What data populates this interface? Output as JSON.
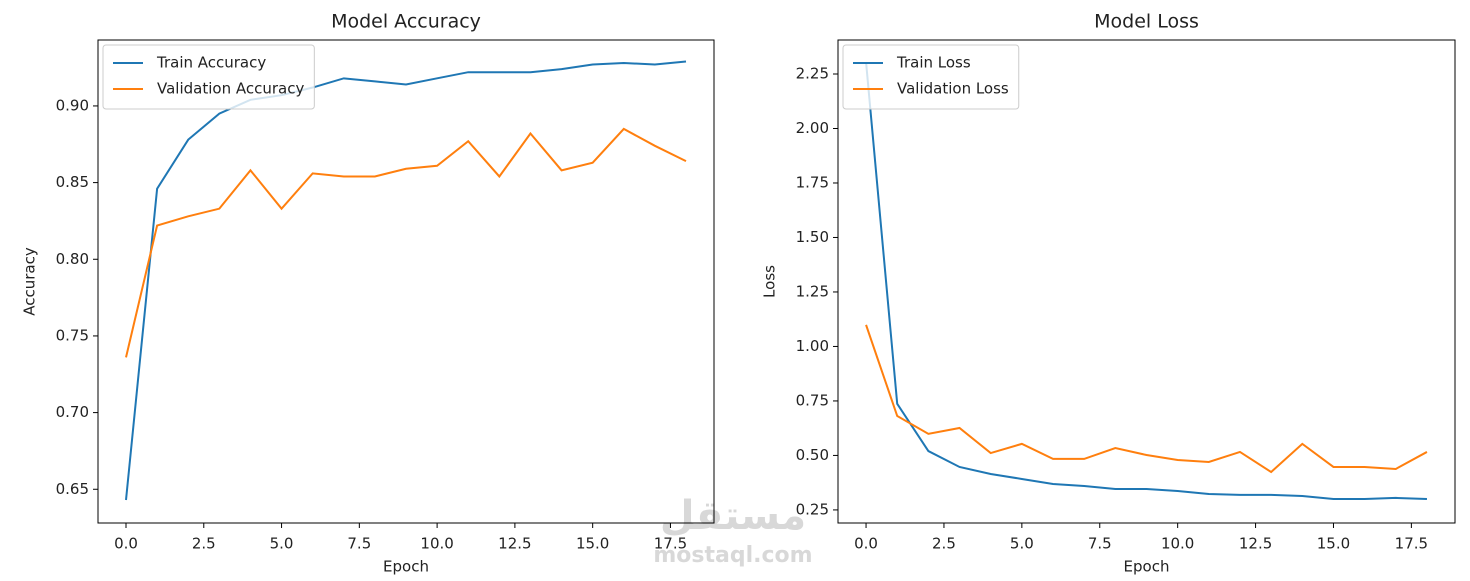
{
  "chart_data": [
    {
      "type": "line",
      "title": "Model Accuracy",
      "x_label": "Epoch",
      "y_label": "Accuracy",
      "x": [
        0,
        1,
        2,
        3,
        4,
        5,
        6,
        7,
        8,
        9,
        10,
        11,
        12,
        13,
        14,
        15,
        16,
        17,
        18
      ],
      "series": [
        {
          "name": "Train Accuracy",
          "color": "#1f77b4",
          "values": [
            0.643,
            0.846,
            0.878,
            0.895,
            0.904,
            0.907,
            0.912,
            0.918,
            0.916,
            0.914,
            0.918,
            0.922,
            0.922,
            0.922,
            0.924,
            0.927,
            0.928,
            0.927,
            0.929
          ]
        },
        {
          "name": "Validation Accuracy",
          "color": "#ff7f0e",
          "values": [
            0.736,
            0.822,
            0.828,
            0.833,
            0.858,
            0.833,
            0.856,
            0.854,
            0.854,
            0.859,
            0.861,
            0.877,
            0.854,
            0.882,
            0.858,
            0.863,
            0.885,
            0.874,
            0.864
          ]
        }
      ],
      "xlim": [
        -0.9,
        18.9
      ],
      "xticks": [
        {
          "value": 0,
          "label": "0.0"
        },
        2.5,
        {
          "value": 5,
          "label": "5.0"
        },
        7.5,
        {
          "value": 10,
          "label": "10.0"
        },
        12.5,
        {
          "value": 15,
          "label": "15.0"
        },
        17.5
      ],
      "ylim": [
        0.628,
        0.943
      ],
      "yticks": [
        0.65,
        {
          "value": 0.7,
          "label": "0.70"
        },
        0.75,
        {
          "value": 0.8,
          "label": "0.80"
        },
        0.85,
        {
          "value": 0.9,
          "label": "0.90"
        }
      ],
      "legend": "upper left"
    },
    {
      "type": "line",
      "title": "Model Loss",
      "x_label": "Epoch",
      "y_label": "Loss",
      "x": [
        0,
        1,
        2,
        3,
        4,
        5,
        6,
        7,
        8,
        9,
        10,
        11,
        12,
        13,
        14,
        15,
        16,
        17,
        18
      ],
      "series": [
        {
          "name": "Train Loss",
          "color": "#1f77b4",
          "values": [
            2.305,
            0.737,
            0.52,
            0.447,
            0.415,
            0.392,
            0.369,
            0.36,
            0.346,
            0.346,
            0.337,
            0.323,
            0.319,
            0.319,
            0.314,
            0.3,
            0.3,
            0.305,
            0.3
          ]
        },
        {
          "name": "Validation Loss",
          "color": "#ff7f0e",
          "values": [
            1.099,
            0.681,
            0.599,
            0.626,
            0.511,
            0.553,
            0.484,
            0.484,
            0.534,
            0.502,
            0.479,
            0.47,
            0.516,
            0.424,
            0.553,
            0.447,
            0.447,
            0.438,
            0.516
          ]
        }
      ],
      "xlim": [
        -0.9,
        18.9
      ],
      "xticks": [
        {
          "value": 0,
          "label": "0.0"
        },
        2.5,
        {
          "value": 5,
          "label": "5.0"
        },
        7.5,
        {
          "value": 10,
          "label": "10.0"
        },
        12.5,
        {
          "value": 15,
          "label": "15.0"
        },
        17.5
      ],
      "ylim": [
        0.19,
        2.406
      ],
      "yticks": [
        0.25,
        {
          "value": 0.5,
          "label": "0.50"
        },
        0.75,
        {
          "value": 1,
          "label": "1.00"
        },
        1.25,
        {
          "value": 1.5,
          "label": "1.50"
        },
        1.75,
        {
          "value": 2,
          "label": "2.00"
        },
        2.25
      ],
      "legend": "upper left"
    }
  ],
  "watermark": {
    "arabic": "مستقل",
    "latin": "mostaql.com"
  }
}
